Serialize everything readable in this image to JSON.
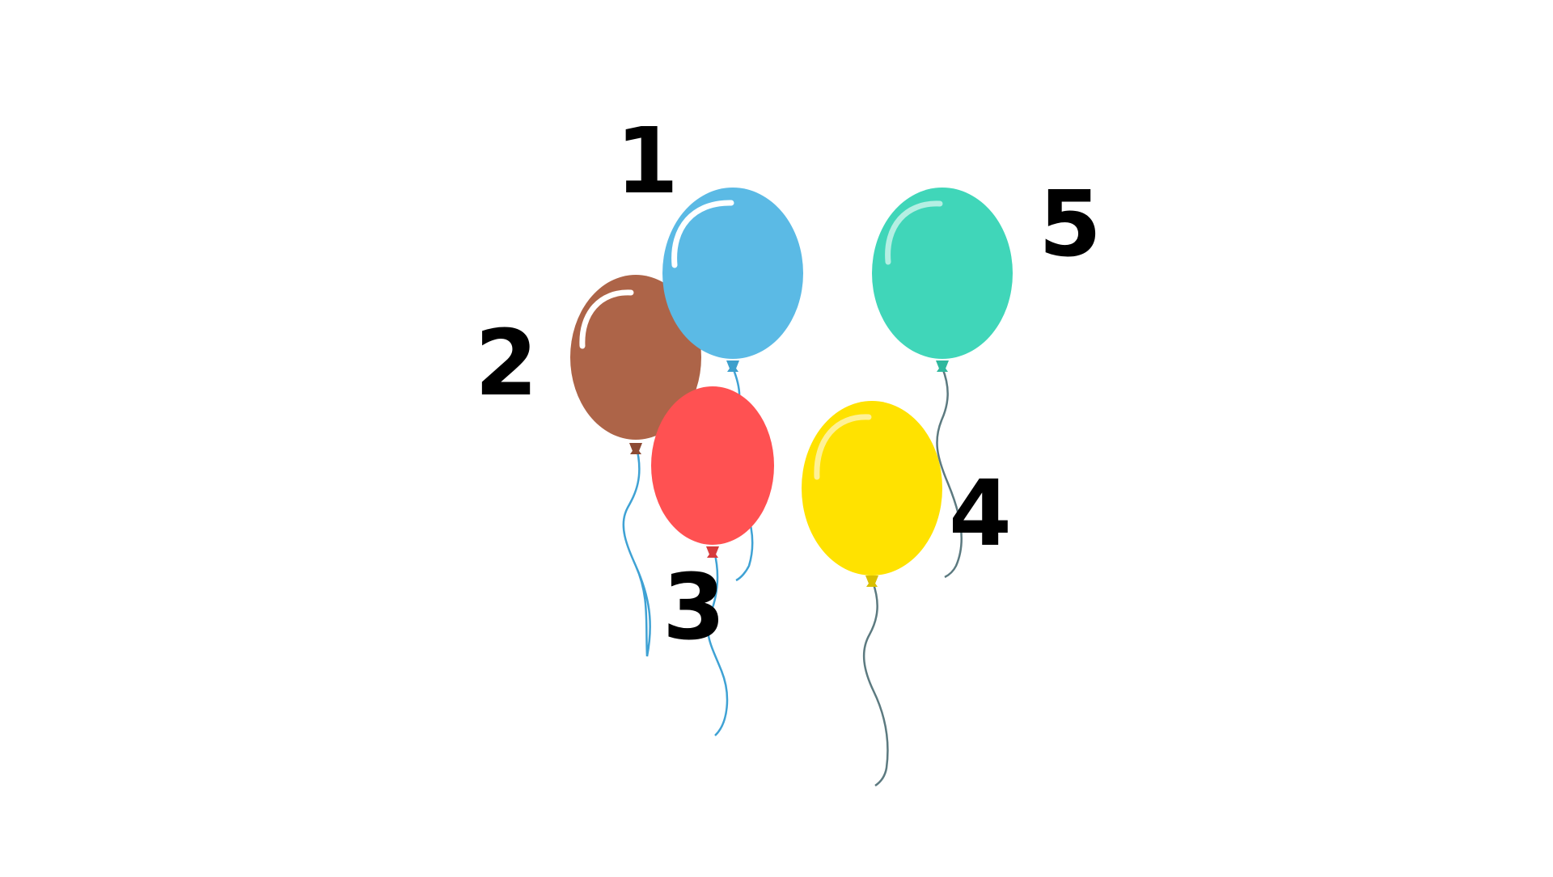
{
  "labels": {
    "one": "1",
    "two": "2",
    "three": "3",
    "four": "4",
    "five": "5"
  },
  "balloons": [
    {
      "label": "1",
      "name": "blue",
      "color": "#5BBAE5",
      "knot_color": "#3D9FCC",
      "string_color": "#3FA2D4"
    },
    {
      "label": "2",
      "name": "brown",
      "color": "#AD6448",
      "knot_color": "#8C4A33",
      "string_color": "#3FA2D4"
    },
    {
      "label": "3",
      "name": "red",
      "color": "#FF5152",
      "knot_color": "#D63B3C",
      "string_color": "#3FA2D4"
    },
    {
      "label": "4",
      "name": "yellow",
      "color": "#FFE200",
      "knot_color": "#D9BF00",
      "string_color": "#5C7A80"
    },
    {
      "label": "5",
      "name": "teal",
      "color": "#40D6B9",
      "knot_color": "#2FB89D",
      "string_color": "#5C7A80"
    }
  ],
  "colors": {
    "background": "#FFFFFF",
    "text": "#000000",
    "highlight": "#FFFFFF"
  }
}
